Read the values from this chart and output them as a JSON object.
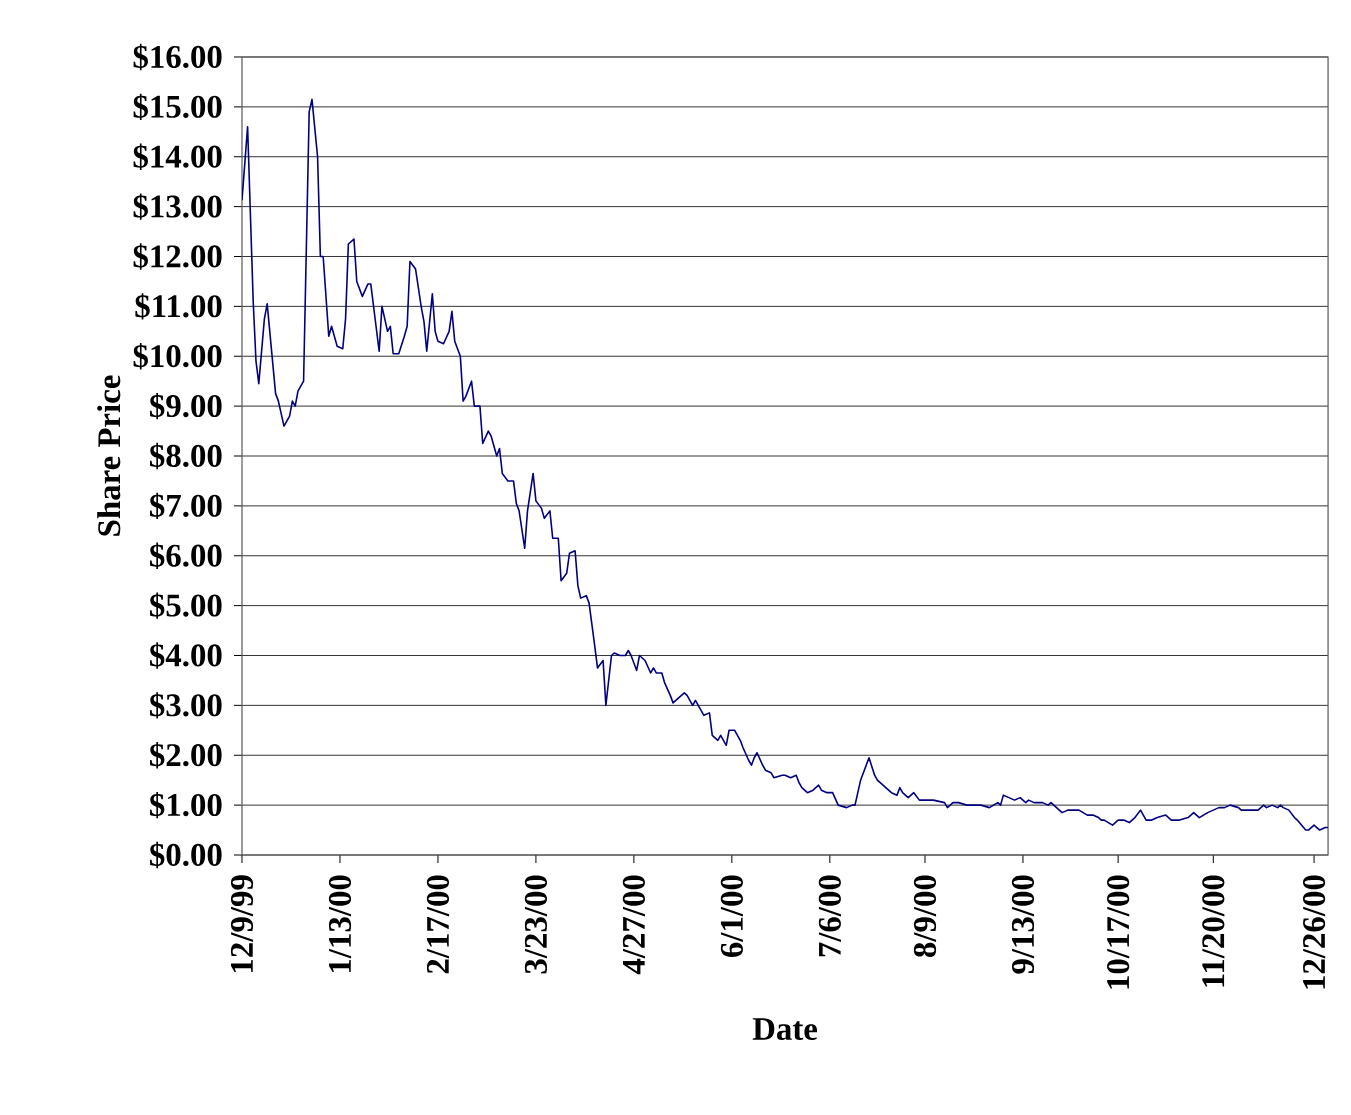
{
  "chart_data": {
    "type": "line",
    "xlabel": "Date",
    "ylabel": "Share Price",
    "xlim": [
      "1999-12-09",
      "2000-12-31"
    ],
    "xticks": [
      {
        "value": "1999-12-09",
        "label": "12/9/99"
      },
      {
        "value": "2000-01-13",
        "label": "1/13/00"
      },
      {
        "value": "2000-02-17",
        "label": "2/17/00"
      },
      {
        "value": "2000-03-23",
        "label": "3/23/00"
      },
      {
        "value": "2000-04-27",
        "label": "4/27/00"
      },
      {
        "value": "2000-06-01",
        "label": "6/1/00"
      },
      {
        "value": "2000-07-06",
        "label": "7/6/00"
      },
      {
        "value": "2000-08-09",
        "label": "8/9/00"
      },
      {
        "value": "2000-09-13",
        "label": "9/13/00"
      },
      {
        "value": "2000-10-17",
        "label": "10/17/00"
      },
      {
        "value": "2000-11-20",
        "label": "11/20/00"
      },
      {
        "value": "2000-12-26",
        "label": "12/26/00"
      }
    ],
    "ylim": [
      0,
      16
    ],
    "yticks": [
      {
        "value": 0,
        "label": "$0.00"
      },
      {
        "value": 1,
        "label": "$1.00"
      },
      {
        "value": 2,
        "label": "$2.00"
      },
      {
        "value": 3,
        "label": "$3.00"
      },
      {
        "value": 4,
        "label": "$4.00"
      },
      {
        "value": 5,
        "label": "$5.00"
      },
      {
        "value": 6,
        "label": "$6.00"
      },
      {
        "value": 7,
        "label": "$7.00"
      },
      {
        "value": 8,
        "label": "$8.00"
      },
      {
        "value": 9,
        "label": "$9.00"
      },
      {
        "value": 10,
        "label": "$10.00"
      },
      {
        "value": 11,
        "label": "$11.00"
      },
      {
        "value": 12,
        "label": "$12.00"
      },
      {
        "value": 13,
        "label": "$13.00"
      },
      {
        "value": 14,
        "label": "$14.00"
      },
      {
        "value": 15,
        "label": "$15.00"
      },
      {
        "value": 16,
        "label": "$16.00"
      }
    ],
    "grid": "y",
    "series": [
      {
        "color": "#000080",
        "x": [
          "1999-12-09",
          "1999-12-11",
          "1999-12-13",
          "1999-12-14",
          "1999-12-15",
          "1999-12-17",
          "1999-12-18",
          "1999-12-21",
          "1999-12-22",
          "1999-12-24",
          "1999-12-26",
          "1999-12-27",
          "1999-12-28",
          "1999-12-29",
          "1999-12-31",
          "2000-01-02",
          "2000-01-03",
          "2000-01-05",
          "2000-01-06",
          "2000-01-07",
          "2000-01-09",
          "2000-01-10",
          "2000-01-12",
          "2000-01-14",
          "2000-01-15",
          "2000-01-16",
          "2000-01-18",
          "2000-01-19",
          "2000-01-21",
          "2000-01-23",
          "2000-01-24",
          "2000-01-27",
          "2000-01-28",
          "2000-01-30",
          "2000-01-31",
          "2000-02-01",
          "2000-02-03",
          "2000-02-05",
          "2000-02-06",
          "2000-02-07",
          "2000-02-09",
          "2000-02-11",
          "2000-02-12",
          "2000-02-13",
          "2000-02-15",
          "2000-02-16",
          "2000-02-17",
          "2000-02-19",
          "2000-02-21",
          "2000-02-22",
          "2000-02-23",
          "2000-02-25",
          "2000-02-26",
          "2000-02-27",
          "2000-02-29",
          "2000-03-01",
          "2000-03-03",
          "2000-03-04",
          "2000-03-06",
          "2000-03-07",
          "2000-03-09",
          "2000-03-10",
          "2000-03-11",
          "2000-03-13",
          "2000-03-15",
          "2000-03-16",
          "2000-03-17",
          "2000-03-19",
          "2000-03-20",
          "2000-03-22",
          "2000-03-23",
          "2000-03-25",
          "2000-03-26",
          "2000-03-28",
          "2000-03-29",
          "2000-03-31",
          "2000-04-01",
          "2000-04-03",
          "2000-04-04",
          "2000-04-06",
          "2000-04-07",
          "2000-04-08",
          "2000-04-10",
          "2000-04-11",
          "2000-04-13",
          "2000-04-14",
          "2000-04-16",
          "2000-04-17",
          "2000-04-19",
          "2000-04-20",
          "2000-04-22",
          "2000-04-24",
          "2000-04-25",
          "2000-04-26",
          "2000-04-28",
          "2000-04-29",
          "2000-05-01",
          "2000-05-03",
          "2000-05-04",
          "2000-05-05",
          "2000-05-07",
          "2000-05-08",
          "2000-05-10",
          "2000-05-11",
          "2000-05-13",
          "2000-05-15",
          "2000-05-16",
          "2000-05-18",
          "2000-05-19",
          "2000-05-20",
          "2000-05-22",
          "2000-05-24",
          "2000-05-25",
          "2000-05-27",
          "2000-05-28",
          "2000-05-30",
          "2000-05-31",
          "2000-06-02",
          "2000-06-04",
          "2000-06-05",
          "2000-06-07",
          "2000-06-08",
          "2000-06-09",
          "2000-06-10",
          "2000-06-12",
          "2000-06-13",
          "2000-06-15",
          "2000-06-16",
          "2000-06-19",
          "2000-06-20",
          "2000-06-22",
          "2000-06-24",
          "2000-06-25",
          "2000-06-26",
          "2000-06-28",
          "2000-06-30",
          "2000-07-02",
          "2000-07-03",
          "2000-07-05",
          "2000-07-07",
          "2000-07-09",
          "2000-07-12",
          "2000-07-14",
          "2000-07-15",
          "2000-07-17",
          "2000-07-19",
          "2000-07-20",
          "2000-07-22",
          "2000-07-23",
          "2000-07-25",
          "2000-07-26",
          "2000-07-28",
          "2000-07-30",
          "2000-07-31",
          "2000-08-01",
          "2000-08-03",
          "2000-08-04",
          "2000-08-05",
          "2000-08-07",
          "2000-08-09",
          "2000-08-12",
          "2000-08-16",
          "2000-08-17",
          "2000-08-19",
          "2000-08-21",
          "2000-08-24",
          "2000-08-26",
          "2000-08-29",
          "2000-09-01",
          "2000-09-04",
          "2000-09-05",
          "2000-09-06",
          "2000-09-08",
          "2000-09-10",
          "2000-09-12",
          "2000-09-14",
          "2000-09-15",
          "2000-09-17",
          "2000-09-20",
          "2000-09-22",
          "2000-09-23",
          "2000-09-25",
          "2000-09-27",
          "2000-09-29",
          "2000-10-01",
          "2000-10-03",
          "2000-10-06",
          "2000-10-08",
          "2000-10-10",
          "2000-10-11",
          "2000-10-12",
          "2000-10-15",
          "2000-10-17",
          "2000-10-19",
          "2000-10-21",
          "2000-10-23",
          "2000-10-25",
          "2000-10-27",
          "2000-10-29",
          "2000-10-31",
          "2000-11-03",
          "2000-11-05",
          "2000-11-08",
          "2000-11-11",
          "2000-11-13",
          "2000-11-15",
          "2000-11-18",
          "2000-11-20",
          "2000-11-22",
          "2000-11-24",
          "2000-11-26",
          "2000-11-29",
          "2000-11-30",
          "2000-12-02",
          "2000-12-06",
          "2000-12-08",
          "2000-12-09",
          "2000-12-11",
          "2000-12-13",
          "2000-12-14",
          "2000-12-15",
          "2000-12-17",
          "2000-12-19",
          "2000-12-20",
          "2000-12-23",
          "2000-12-24",
          "2000-12-26",
          "2000-12-28",
          "2000-12-30",
          "2000-12-31"
        ],
        "values": [
          13.13,
          14.6,
          11.1,
          9.9,
          9.45,
          10.75,
          11.05,
          9.25,
          9.1,
          8.6,
          8.8,
          9.1,
          9.0,
          9.3,
          9.5,
          14.9,
          15.15,
          14.0,
          12.0,
          12.0,
          10.4,
          10.6,
          10.2,
          10.15,
          10.75,
          12.25,
          12.35,
          11.5,
          11.2,
          11.45,
          11.45,
          10.1,
          11.0,
          10.5,
          10.6,
          10.05,
          10.05,
          10.4,
          10.6,
          11.9,
          11.75,
          11.0,
          10.7,
          10.1,
          11.25,
          10.5,
          10.3,
          10.25,
          10.5,
          10.9,
          10.3,
          10.0,
          9.1,
          9.2,
          9.5,
          9.0,
          9.0,
          8.25,
          8.5,
          8.4,
          8.0,
          8.15,
          7.65,
          7.5,
          7.5,
          7.05,
          6.9,
          6.15,
          6.9,
          7.65,
          7.1,
          6.95,
          6.75,
          6.9,
          6.35,
          6.35,
          5.5,
          5.65,
          6.05,
          6.1,
          5.4,
          5.15,
          5.2,
          5.05,
          4.2,
          3.75,
          3.9,
          3.0,
          4.0,
          4.05,
          4.0,
          4.0,
          4.1,
          4.0,
          3.7,
          4.0,
          3.9,
          3.65,
          3.75,
          3.65,
          3.65,
          3.45,
          3.2,
          3.05,
          3.15,
          3.25,
          3.2,
          3.0,
          3.1,
          3.0,
          2.8,
          2.85,
          2.4,
          2.3,
          2.4,
          2.2,
          2.5,
          2.5,
          2.3,
          2.15,
          1.9,
          1.8,
          1.95,
          2.05,
          1.8,
          1.7,
          1.65,
          1.55,
          1.6,
          1.6,
          1.55,
          1.6,
          1.45,
          1.35,
          1.25,
          1.3,
          1.4,
          1.3,
          1.25,
          1.25,
          1.0,
          0.95,
          1.0,
          1.0,
          1.5,
          1.8,
          1.95,
          1.6,
          1.5,
          1.4,
          1.35,
          1.25,
          1.2,
          1.35,
          1.25,
          1.15,
          1.2,
          1.25,
          1.1,
          1.1,
          1.1,
          1.05,
          0.95,
          1.05,
          1.05,
          1.0,
          1.0,
          1.0,
          0.95,
          1.05,
          1.0,
          1.2,
          1.15,
          1.1,
          1.15,
          1.05,
          1.1,
          1.05,
          1.05,
          1.0,
          1.05,
          0.95,
          0.85,
          0.9,
          0.9,
          0.9,
          0.8,
          0.8,
          0.75,
          0.7,
          0.7,
          0.6,
          0.7,
          0.7,
          0.65,
          0.75,
          0.9,
          0.7,
          0.7,
          0.75,
          0.8,
          0.7,
          0.7,
          0.75,
          0.85,
          0.75,
          0.85,
          0.9,
          0.95,
          0.95,
          1.0,
          0.95,
          0.9,
          0.9,
          0.9,
          1.0,
          0.95,
          1.0,
          0.95,
          1.0,
          0.95,
          0.9,
          0.75,
          0.7,
          0.5,
          0.5,
          0.6,
          0.5,
          0.55,
          0.55
        ]
      }
    ]
  }
}
